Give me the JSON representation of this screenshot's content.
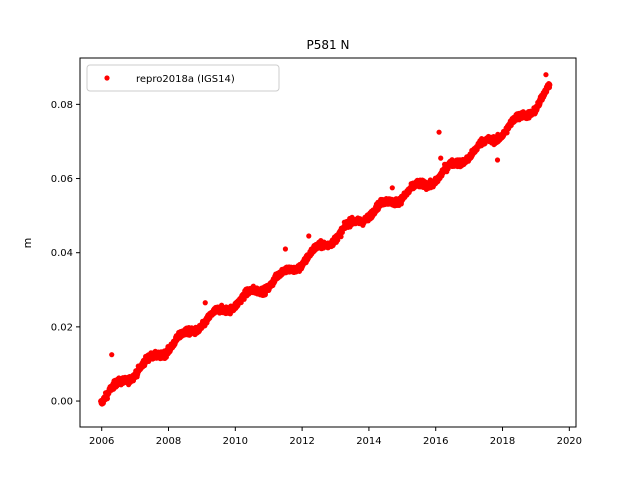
{
  "chart_data": {
    "type": "scatter",
    "title": "P581 N",
    "xlabel": "",
    "ylabel": "m",
    "xlim": [
      2005.35,
      2020.2
    ],
    "ylim": [
      -0.007,
      0.0925
    ],
    "x_ticks": [
      2006,
      2008,
      2010,
      2012,
      2014,
      2016,
      2018,
      2020
    ],
    "x_tick_labels": [
      "2006",
      "2008",
      "2010",
      "2012",
      "2014",
      "2016",
      "2018",
      "2020"
    ],
    "y_ticks": [
      0.0,
      0.02,
      0.04,
      0.06,
      0.08
    ],
    "y_tick_labels": [
      "0.00",
      "0.02",
      "0.04",
      "0.06",
      "0.08"
    ],
    "grid": false,
    "legend_position": "top-left",
    "series": [
      {
        "name": "repro2018a (IGS14)",
        "color": "#ff0000",
        "marker": "circle",
        "x_range": [
          2005.97,
          2019.42
        ],
        "trend": [
          [
            2006.0,
            0.0005
          ],
          [
            2007.0,
            0.008
          ],
          [
            2008.0,
            0.0145
          ],
          [
            2009.0,
            0.021
          ],
          [
            2010.0,
            0.0265
          ],
          [
            2011.0,
            0.0315
          ],
          [
            2012.0,
            0.0375
          ],
          [
            2013.0,
            0.0445
          ],
          [
            2014.0,
            0.0505
          ],
          [
            2015.0,
            0.0555
          ],
          [
            2016.0,
            0.06
          ],
          [
            2017.0,
            0.0665
          ],
          [
            2018.0,
            0.0725
          ],
          [
            2019.0,
            0.0795
          ],
          [
            2019.42,
            0.0845
          ]
        ],
        "outliers": [
          [
            2006.3,
            0.0125
          ],
          [
            2009.1,
            0.0265
          ],
          [
            2011.5,
            0.041
          ],
          [
            2012.2,
            0.0445
          ],
          [
            2014.7,
            0.0575
          ],
          [
            2016.15,
            0.0655
          ],
          [
            2016.1,
            0.0725
          ],
          [
            2017.85,
            0.065
          ],
          [
            2019.3,
            0.088
          ]
        ]
      }
    ]
  }
}
